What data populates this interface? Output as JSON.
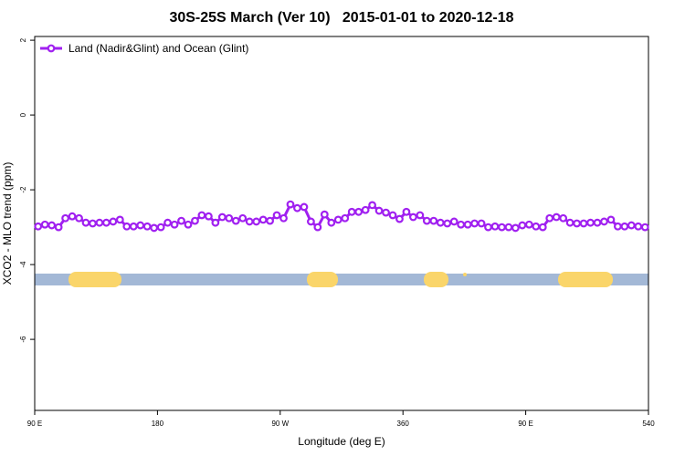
{
  "chart_data": {
    "type": "line",
    "title": "30S-25S March (Ver 10)   2015-01-01 to 2020-12-18",
    "x_label": "Longitude (deg E)",
    "y_label": "XCO2 - MLO trend (ppm)",
    "x": [
      92.5,
      97.5,
      102.5,
      107.5,
      112.5,
      117.5,
      122.5,
      127.5,
      132.5,
      137.5,
      142.5,
      147.5,
      152.5,
      157.5,
      162.5,
      167.5,
      172.5,
      177.5,
      182.5,
      187.5,
      192.5,
      197.5,
      202.5,
      207.5,
      212.5,
      217.5,
      222.5,
      227.5,
      232.5,
      237.5,
      242.5,
      247.5,
      252.5,
      257.5,
      262.5,
      267.5,
      272.5,
      277.5,
      282.5,
      287.5,
      292.5,
      297.5,
      302.5,
      307.5,
      312.5,
      317.5,
      322.5,
      327.5,
      332.5,
      337.5,
      342.5,
      347.5,
      352.5,
      357.5,
      362.5,
      367.5,
      372.5,
      377.5,
      382.5,
      387.5,
      392.5,
      397.5,
      402.5,
      407.5,
      412.5,
      417.5,
      422.5,
      427.5,
      432.5,
      437.5,
      442.5,
      447.5,
      452.5,
      457.5,
      462.5,
      467.5,
      472.5,
      477.5,
      482.5,
      487.5,
      492.5,
      497.5,
      502.5,
      507.5,
      512.5,
      517.5,
      522.5,
      527.5,
      532.5,
      537.5
    ],
    "series": [
      {
        "name": "Land (Nadir&Glint) and Ocean (Glint)",
        "color": "#a020f0",
        "values": [
          -2.98,
          -2.93,
          -2.95,
          -3.0,
          -2.76,
          -2.71,
          -2.76,
          -2.88,
          -2.9,
          -2.88,
          -2.88,
          -2.85,
          -2.8,
          -2.98,
          -2.98,
          -2.95,
          -2.98,
          -3.02,
          -3.0,
          -2.88,
          -2.93,
          -2.83,
          -2.93,
          -2.83,
          -2.68,
          -2.71,
          -2.88,
          -2.73,
          -2.76,
          -2.83,
          -2.76,
          -2.85,
          -2.85,
          -2.8,
          -2.83,
          -2.68,
          -2.76,
          -2.39,
          -2.49,
          -2.46,
          -2.85,
          -3.0,
          -2.66,
          -2.88,
          -2.8,
          -2.76,
          -2.59,
          -2.59,
          -2.54,
          -2.41,
          -2.56,
          -2.61,
          -2.68,
          -2.78,
          -2.59,
          -2.73,
          -2.68,
          -2.83,
          -2.83,
          -2.88,
          -2.9,
          -2.85,
          -2.93,
          -2.93,
          -2.9,
          -2.9,
          -3.0,
          -2.98,
          -3.0,
          -3.0,
          -3.02,
          -2.95,
          -2.93,
          -2.98,
          -3.0,
          -2.76,
          -2.73,
          -2.76,
          -2.88,
          -2.9,
          -2.9,
          -2.88,
          -2.88,
          -2.85,
          -2.8,
          -2.98,
          -2.98,
          -2.95,
          -2.98,
          -3.0
        ]
      }
    ],
    "xlim": [
      90,
      540
    ],
    "xticks": [
      {
        "value": 90,
        "label": "90 E"
      },
      180,
      {
        "value": 270,
        "label": "90 W"
      },
      360,
      {
        "value": 450,
        "label": "90 E"
      },
      540
    ],
    "ylim": [
      -7.9,
      2.1
    ],
    "yticks": [
      2,
      0,
      -2,
      -4,
      -6
    ],
    "legend": "top-left"
  }
}
